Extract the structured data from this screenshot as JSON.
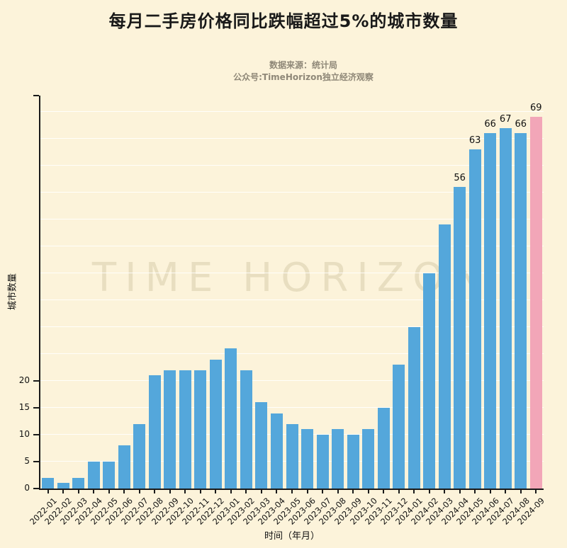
{
  "page": {
    "title": "每月二手房价格同比跌幅超过5%的城市数量",
    "source_line": "数据来源：统计局",
    "account_line": "公众号:TimeHorizon独立经济观察",
    "watermark": "TIME HORIZON",
    "background_color": "#fcf3da"
  },
  "chart_data": {
    "type": "bar",
    "title": "每月二手房价格同比跌幅超过5%的城市数量",
    "xlabel": "时间（年月）",
    "ylabel": "城市数量",
    "ylim": [
      0,
      73
    ],
    "yticks": [
      0,
      5,
      10,
      15,
      20
    ],
    "grid": true,
    "grid_step": 5,
    "categories": [
      "2022-01",
      "2022-02",
      "2022-03",
      "2022-04",
      "2022-05",
      "2022-06",
      "2022-07",
      "2022-08",
      "2022-09",
      "2022-10",
      "2022-11",
      "2022-12",
      "2023-01",
      "2023-02",
      "2023-03",
      "2023-04",
      "2023-05",
      "2023-06",
      "2023-07",
      "2023-08",
      "2023-09",
      "2023-10",
      "2023-11",
      "2023-12",
      "2024-01",
      "2024-02",
      "2024-03",
      "2024-04",
      "2024-05",
      "2024-06",
      "2024-07",
      "2024-08",
      "2024-09"
    ],
    "values": [
      2,
      1,
      2,
      5,
      5,
      8,
      12,
      21,
      22,
      22,
      22,
      24,
      26,
      22,
      16,
      14,
      12,
      11,
      10,
      11,
      10,
      11,
      15,
      23,
      30,
      40,
      49,
      56,
      63,
      66,
      67,
      66,
      69
    ],
    "value_labels_from_index": 27,
    "shown_value_labels": [
      56,
      63,
      66,
      67,
      66,
      69
    ],
    "bar_color": "#54a7db",
    "highlight_color": "#f2a6b8",
    "highlight_index": 32,
    "axis_color": "#1a1a1a"
  }
}
